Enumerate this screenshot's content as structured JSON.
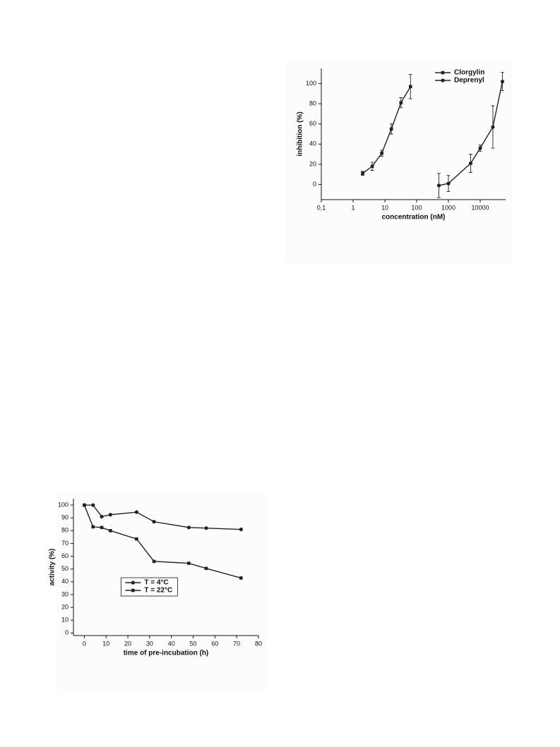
{
  "chart_data": [
    {
      "type": "line",
      "x_label": "concentration (nM)",
      "y_label": "inhibition (%)",
      "xlog": true,
      "xlim": [
        0.1,
        63000
      ],
      "ylim": [
        -15,
        115
      ],
      "xticks": [
        {
          "value": 0.1,
          "label": "0,1"
        },
        1,
        10,
        100,
        1000,
        10000
      ],
      "yticks": [
        0,
        20,
        40,
        60,
        80,
        100
      ],
      "legend": "upper right",
      "series": [
        {
          "name": "Clorgylin",
          "color": "#222222",
          "marker": "square",
          "x": [
            2,
            4,
            8,
            16,
            32,
            64
          ],
          "values": [
            11,
            18,
            31,
            55,
            81,
            97
          ],
          "errors": [
            2,
            4,
            3,
            5,
            5,
            12
          ]
        },
        {
          "name": "Deprenyl",
          "color": "#222222",
          "marker": "circle",
          "x": [
            500,
            1000,
            5000,
            10000,
            25000,
            50000
          ],
          "values": [
            -1,
            1,
            21,
            36,
            57,
            102
          ],
          "errors": [
            12,
            8,
            9,
            3,
            21,
            9
          ]
        }
      ]
    },
    {
      "type": "line",
      "x_label": "time of pre-incubation (h)",
      "y_label": "activity (%)",
      "xlim": [
        -5,
        80
      ],
      "ylim": [
        -2,
        105
      ],
      "xticks": [
        0,
        10,
        20,
        30,
        40,
        50,
        60,
        70,
        80
      ],
      "yticks": [
        0,
        10,
        20,
        30,
        40,
        50,
        60,
        70,
        80,
        90,
        100
      ],
      "legend": "lower center",
      "series": [
        {
          "name": "T = 4°C",
          "color": "#222222",
          "marker": "circle",
          "x": [
            0,
            4,
            8,
            12,
            24,
            32,
            48,
            56,
            72
          ],
          "values": [
            100,
            100,
            91,
            92.5,
            94.5,
            87,
            82.5,
            82,
            81
          ]
        },
        {
          "name": "T = 22°C",
          "color": "#222222",
          "marker": "square",
          "x": [
            0,
            4,
            8,
            12,
            24,
            32,
            48,
            56,
            72
          ],
          "values": [
            100,
            83,
            82.5,
            80,
            73.5,
            56,
            54.5,
            50.5,
            43
          ]
        }
      ]
    }
  ]
}
